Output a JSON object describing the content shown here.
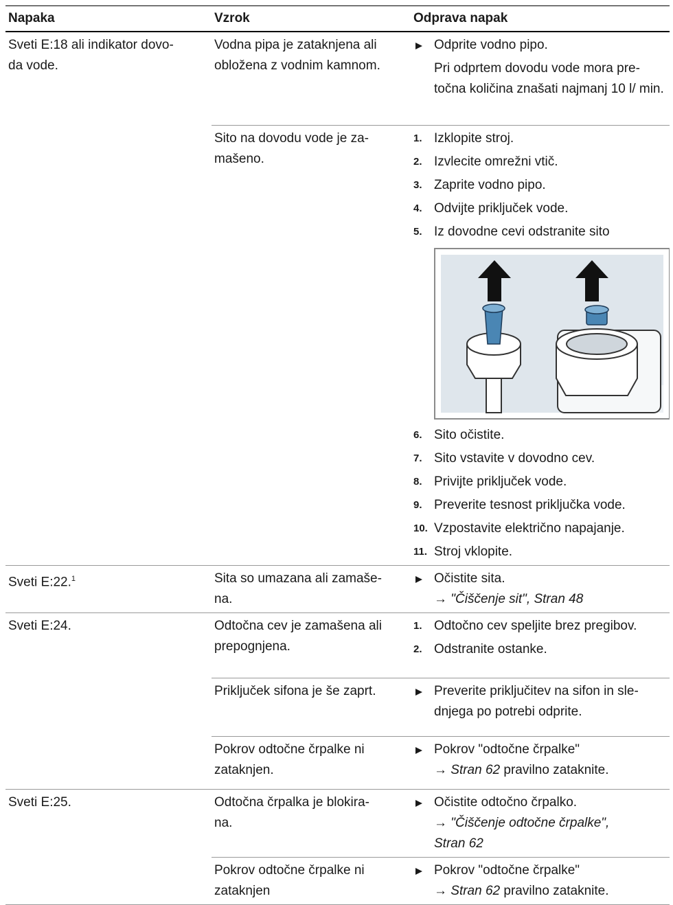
{
  "header": [
    "Napaka",
    "Vzrok",
    "Odprava napak"
  ],
  "rows": [
    {
      "fault": {
        "text": "Sveti E:18 ali indikator dovo-\nda vode."
      },
      "causes": [
        {
          "cause": "Vodna pipa je zataknjena ali\nobložena z vodnim kamnom.",
          "remedy": {
            "items": [
              {
                "text": "Odprite vodno pipo."
              },
              {
                "note": "Pri odprtem dovodu vode mora pre-\ntočna količina znašati najmanj 10 l/\nmin."
              }
            ]
          }
        },
        {
          "cause": "Sito na dovodu vode je za-\nmašeno.",
          "remedy": {
            "items": [
              {
                "num": "1.",
                "text": "Izklopite stroj."
              },
              {
                "num": "2.",
                "text": "Izvlecite omrežni vtič."
              },
              {
                "num": "3.",
                "text": "Zaprite vodno pipo."
              },
              {
                "num": "4.",
                "text": "Odvijte priključek vode."
              },
              {
                "num": "5.",
                "text": "Iz dovodne cevi odstranite sito"
              }
            ],
            "items_after_figure": [
              {
                "num": "6.",
                "text": "Sito očistite."
              },
              {
                "num": "7.",
                "text": "Sito vstavite v dovodno cev."
              },
              {
                "num": "8.",
                "text": "Privijte priključek vode."
              },
              {
                "num": "9.",
                "text": "Preverite tesnost priključka vode."
              },
              {
                "num": "10.",
                "text": "Vzpostavite električno napajanje."
              },
              {
                "num": "11.",
                "text": "Stroj vklopite."
              }
            ]
          }
        }
      ]
    },
    {
      "fault": {
        "text": "Sveti E:22.",
        "sup": "1"
      },
      "causes": [
        {
          "cause": "Sita so umazana ali zamaše-\nna.",
          "remedy": {
            "items": [
              {
                "text": "Očistite sita.",
                "ref": {
                  "arrow": "→",
                  "link": "\"Čiščenje sit\", Stran 48"
                }
              }
            ]
          }
        }
      ]
    },
    {
      "fault": {
        "text": "Sveti E:24."
      },
      "causes": [
        {
          "cause": "Odtočna cev je zamašena ali\nprepognjena.",
          "remedy": {
            "items": [
              {
                "num": "1.",
                "text": "Odtočno cev speljite brez pregibov."
              },
              {
                "num": "2.",
                "text": "Odstranite ostanke."
              }
            ]
          }
        },
        {
          "cause": "Priključek sifona je še zaprt.",
          "remedy": {
            "items": [
              {
                "text": "Preverite priključitev na sifon in sle-\ndnjega po potrebi odprite."
              }
            ]
          }
        },
        {
          "cause": "Pokrov odtočne črpalke ni\nzataknjen.",
          "remedy": {
            "items": [
              {
                "text": "Pokrov \"odtočne črpalke\"",
                "ref": {
                  "arrow": "→",
                  "link": "Stran 62",
                  "after": " pravilno zataknite."
                }
              }
            ]
          }
        }
      ]
    },
    {
      "fault": {
        "text": "Sveti E:25."
      },
      "causes": [
        {
          "cause": "Odtočna črpalka je blokira-\nna.",
          "remedy": {
            "items": [
              {
                "text": "Očistite odtočno črpalko.",
                "ref": {
                  "arrow": "→",
                  "link": "\"Čiščenje odtočne črpalke\",\nStran 62"
                }
              }
            ]
          }
        },
        {
          "cause": "Pokrov odtočne črpalke ni\nzataknjen",
          "remedy": {
            "items": [
              {
                "text": "Pokrov \"odtočne črpalke\"",
                "ref": {
                  "arrow": "→",
                  "link": "Stran 62",
                  "after": " pravilno zataknite."
                }
              }
            ]
          }
        }
      ]
    }
  ]
}
